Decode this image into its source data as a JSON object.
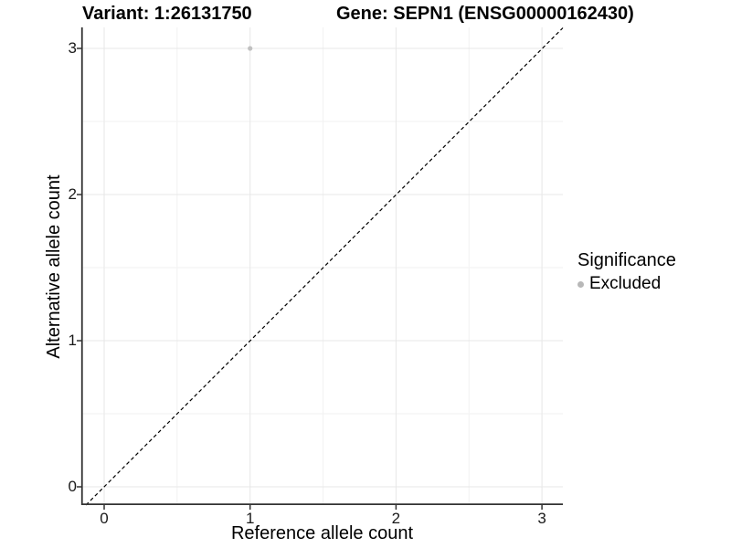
{
  "header": {
    "variant_title": "Variant: 1:26131750",
    "gene_title": "Gene: SEPN1 (ENSG00000162430)"
  },
  "chart_data": {
    "type": "scatter",
    "title_left": "Variant: 1:26131750",
    "title_right": "Gene: SEPN1 (ENSG00000162430)",
    "xlabel": "Reference allele count",
    "ylabel": "Alternative allele count",
    "xlim": [
      -0.16,
      3.14
    ],
    "ylim": [
      -0.13,
      3.14
    ],
    "x_ticks": [
      0,
      1,
      2,
      3
    ],
    "y_ticks": [
      0,
      1,
      2,
      3
    ],
    "x_tick_labels": [
      "0",
      "1",
      "2",
      "3"
    ],
    "y_tick_labels": [
      "0",
      "1",
      "2",
      "3"
    ],
    "minor_grid_positions": [
      0.5,
      1.5,
      2.5
    ],
    "grid": "major-and-minor",
    "points": [
      {
        "x": 1,
        "y": 3,
        "series": "Excluded"
      }
    ],
    "reference_line": {
      "type": "abline",
      "slope": 1,
      "intercept": 0,
      "style": "dashed"
    },
    "legend": {
      "title": "Significance",
      "position": "right",
      "items": [
        {
          "label": "Excluded",
          "marker": "circle",
          "color": "#b8b8b8"
        }
      ]
    },
    "colors": {
      "point": "#c0c0c0",
      "grid_major": "#e7e7e7",
      "grid_minor": "#f2f2f2",
      "axis_line": "#333333",
      "reference_line": "#000000",
      "text": "#000000"
    }
  }
}
